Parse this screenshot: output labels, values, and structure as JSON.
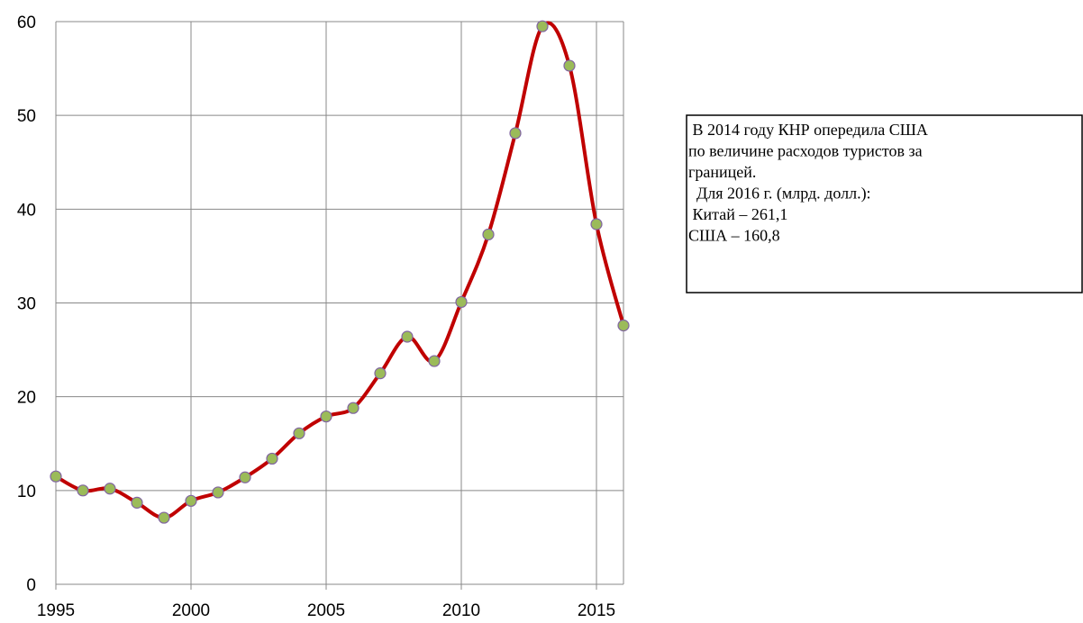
{
  "chart_data": {
    "type": "line",
    "x": [
      1995,
      1996,
      1997,
      1998,
      1999,
      2000,
      2001,
      2002,
      2003,
      2004,
      2005,
      2006,
      2007,
      2008,
      2009,
      2010,
      2011,
      2012,
      2013,
      2014,
      2015,
      2016
    ],
    "series": [
      {
        "color": "#c00000",
        "marker_color": "#9bbb59",
        "values": [
          11.5,
          10.0,
          10.2,
          8.7,
          7.1,
          8.9,
          9.8,
          11.4,
          13.4,
          16.1,
          17.9,
          18.8,
          22.5,
          26.4,
          23.8,
          30.1,
          37.3,
          48.1,
          59.5,
          55.3,
          38.4,
          27.6
        ]
      }
    ],
    "xlim": [
      1995,
      2016
    ],
    "xticks": [
      1995,
      2000,
      2005,
      2010,
      2015
    ],
    "ylim": [
      0,
      60
    ],
    "yticks": [
      0,
      10,
      20,
      30,
      40,
      50,
      60
    ],
    "grid": true,
    "annotation": [
      " В 2014 году КНР опередила США",
      "по величине расходов туристов за",
      "границей.",
      "  Для 2016 г. (млрд. долл.):",
      " Китай – 261,1",
      "США – 160,8"
    ]
  }
}
